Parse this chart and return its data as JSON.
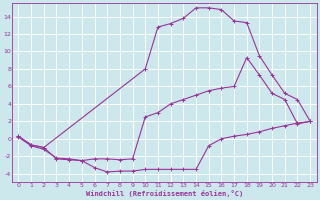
{
  "xlabel": "Windchill (Refroidissement éolien,°C)",
  "background_color": "#cce8ed",
  "grid_color": "#ffffff",
  "line_color": "#993399",
  "xlim": [
    -0.5,
    23.5
  ],
  "ylim": [
    -5.0,
    15.5
  ],
  "yticks": [
    -4,
    -2,
    0,
    2,
    4,
    6,
    8,
    10,
    12,
    14
  ],
  "xticks": [
    0,
    1,
    2,
    3,
    4,
    5,
    6,
    7,
    8,
    9,
    10,
    11,
    12,
    13,
    14,
    15,
    16,
    17,
    18,
    19,
    20,
    21,
    22,
    23
  ],
  "curve_top_x": [
    0,
    1,
    2,
    10,
    11,
    12,
    13,
    14,
    15,
    16,
    17,
    18,
    19,
    20,
    21,
    22,
    23
  ],
  "curve_top_y": [
    0.3,
    -0.7,
    -1.0,
    8.0,
    12.8,
    13.2,
    13.8,
    15.0,
    15.0,
    14.8,
    13.5,
    13.3,
    9.5,
    7.3,
    5.2,
    4.5,
    2.0
  ],
  "curve_mid_x": [
    0,
    1,
    2,
    3,
    4,
    5,
    6,
    7,
    8,
    9,
    10,
    11,
    12,
    13,
    14,
    15,
    16,
    17,
    18,
    19,
    20,
    21,
    22,
    23
  ],
  "curve_mid_y": [
    0.3,
    -0.7,
    -1.0,
    -2.3,
    -2.4,
    -2.5,
    -2.3,
    -2.3,
    -2.4,
    -2.3,
    2.5,
    3.0,
    4.0,
    4.5,
    5.0,
    5.5,
    5.8,
    6.0,
    9.3,
    7.3,
    5.2,
    4.5,
    1.7,
    2.0
  ],
  "curve_bot_x": [
    0,
    1,
    2,
    3,
    4,
    5,
    6,
    7,
    8,
    9,
    10,
    11,
    12,
    13,
    14,
    15,
    16,
    17,
    18,
    19,
    20,
    21,
    22,
    23
  ],
  "curve_bot_y": [
    0.2,
    -0.8,
    -1.2,
    -2.2,
    -2.3,
    -2.5,
    -3.3,
    -3.8,
    -3.7,
    -3.7,
    -3.5,
    -3.5,
    -3.5,
    -3.5,
    -3.5,
    -0.8,
    0.0,
    0.3,
    0.5,
    0.8,
    1.2,
    1.5,
    1.8,
    2.0
  ]
}
